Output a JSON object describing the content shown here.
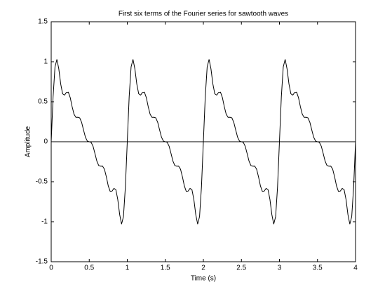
{
  "chart_data": {
    "type": "line",
    "title": "First six terms of the Fourier series for sawtooth waves",
    "x_label": "Time (s)",
    "y_label": "Amplitude",
    "color": "#000000",
    "reference_line": 0,
    "xlim": [
      0,
      4
    ],
    "ylim": [
      -1.5,
      1.5
    ],
    "xticks": [
      0,
      0.5,
      1,
      1.5,
      2,
      2.5,
      3,
      3.5,
      4
    ],
    "yticks": [
      -1.5,
      -1,
      -0.5,
      0,
      0.5,
      1,
      1.5
    ],
    "x": [
      0,
      0.025,
      0.05,
      0.075,
      0.1,
      0.125,
      0.15,
      0.175,
      0.2,
      0.225,
      0.25,
      0.275,
      0.3,
      0.325,
      0.35,
      0.375,
      0.4,
      0.425,
      0.45,
      0.475,
      0.5,
      0.525,
      0.55,
      0.575,
      0.6,
      0.625,
      0.65,
      0.675,
      0.7,
      0.725,
      0.75,
      0.775,
      0.8,
      0.825,
      0.85,
      0.875,
      0.9,
      0.925,
      0.95,
      0.975,
      1,
      1.025,
      1.05,
      1.075,
      1.1,
      1.125,
      1.15,
      1.175,
      1.2,
      1.225,
      1.25,
      1.275,
      1.3,
      1.325,
      1.35,
      1.375,
      1.4,
      1.425,
      1.45,
      1.475,
      1.5,
      1.525,
      1.55,
      1.575,
      1.6,
      1.625,
      1.65,
      1.675,
      1.7,
      1.725,
      1.75,
      1.775,
      1.8,
      1.825,
      1.85,
      1.875,
      1.9,
      1.925,
      1.95,
      1.975,
      2,
      2.025,
      2.05,
      2.075,
      2.1,
      2.125,
      2.15,
      2.175,
      2.2,
      2.225,
      2.25,
      2.275,
      2.3,
      2.325,
      2.35,
      2.375,
      2.4,
      2.425,
      2.45,
      2.475,
      2.5,
      2.525,
      2.55,
      2.575,
      2.6,
      2.625,
      2.65,
      2.675,
      2.7,
      2.725,
      2.75,
      2.775,
      2.8,
      2.825,
      2.85,
      2.875,
      2.9,
      2.925,
      2.95,
      2.975,
      3,
      3.025,
      3.05,
      3.075,
      3.1,
      3.125,
      3.15,
      3.175,
      3.2,
      3.225,
      3.25,
      3.275,
      3.3,
      3.325,
      3.35,
      3.375,
      3.4,
      3.425,
      3.45,
      3.475,
      3.5,
      3.525,
      3.55,
      3.575,
      3.6,
      3.625,
      3.65,
      3.675,
      3.7,
      3.725,
      3.75,
      3.775,
      3.8,
      3.825,
      3.85,
      3.875,
      3.9,
      3.925,
      3.95,
      3.975,
      4
    ],
    "values": [
      0,
      0.564,
      0.935,
      1.03,
      0.91,
      0.722,
      0.6,
      0.583,
      0.617,
      0.62,
      0.552,
      0.439,
      0.344,
      0.305,
      0.306,
      0.298,
      0.242,
      0.147,
      0.056,
      0.008,
      0,
      -0.008,
      -0.056,
      -0.147,
      -0.242,
      -0.298,
      -0.306,
      -0.305,
      -0.344,
      -0.439,
      -0.552,
      -0.62,
      -0.617,
      -0.583,
      -0.6,
      -0.722,
      -0.91,
      -1.03,
      -0.935,
      -0.564,
      0,
      0.564,
      0.935,
      1.03,
      0.91,
      0.722,
      0.6,
      0.583,
      0.617,
      0.62,
      0.552,
      0.439,
      0.344,
      0.305,
      0.306,
      0.298,
      0.242,
      0.147,
      0.056,
      0.008,
      0,
      -0.008,
      -0.056,
      -0.147,
      -0.242,
      -0.298,
      -0.306,
      -0.305,
      -0.344,
      -0.439,
      -0.552,
      -0.62,
      -0.617,
      -0.583,
      -0.6,
      -0.722,
      -0.91,
      -1.03,
      -0.935,
      -0.564,
      0,
      0.564,
      0.935,
      1.03,
      0.91,
      0.722,
      0.6,
      0.583,
      0.617,
      0.62,
      0.552,
      0.439,
      0.344,
      0.305,
      0.306,
      0.298,
      0.242,
      0.147,
      0.056,
      0.008,
      0,
      -0.008,
      -0.056,
      -0.147,
      -0.242,
      -0.298,
      -0.306,
      -0.305,
      -0.344,
      -0.439,
      -0.552,
      -0.62,
      -0.617,
      -0.583,
      -0.6,
      -0.722,
      -0.91,
      -1.03,
      -0.935,
      -0.564,
      0,
      0.564,
      0.935,
      1.03,
      0.91,
      0.722,
      0.6,
      0.583,
      0.617,
      0.62,
      0.552,
      0.439,
      0.344,
      0.305,
      0.306,
      0.298,
      0.242,
      0.147,
      0.056,
      0.008,
      0,
      -0.008,
      -0.056,
      -0.147,
      -0.242,
      -0.298,
      -0.306,
      -0.305,
      -0.344,
      -0.439,
      -0.552,
      -0.62,
      -0.617,
      -0.583,
      -0.6,
      -0.722,
      -0.91,
      -1.03,
      -0.935,
      -0.564,
      0
    ]
  }
}
